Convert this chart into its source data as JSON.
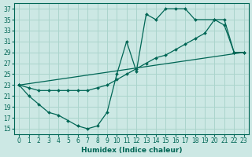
{
  "xlabel": "Humidex (Indice chaleur)",
  "bg_color": "#cce8e4",
  "grid_color": "#aad4cc",
  "line_color": "#006655",
  "xlim": [
    -0.5,
    23.5
  ],
  "ylim": [
    14,
    38
  ],
  "xticks": [
    0,
    1,
    2,
    3,
    4,
    5,
    6,
    7,
    8,
    9,
    10,
    11,
    12,
    13,
    14,
    15,
    16,
    17,
    18,
    19,
    20,
    21,
    22,
    23
  ],
  "yticks": [
    15,
    17,
    19,
    21,
    23,
    25,
    27,
    29,
    31,
    33,
    35,
    37
  ],
  "line1_x": [
    0,
    1,
    2,
    3,
    4,
    5,
    6,
    7,
    8,
    9,
    10,
    11,
    12,
    13,
    14,
    15,
    16,
    17,
    18,
    20,
    21,
    22,
    23
  ],
  "line1_y": [
    23,
    21,
    19.5,
    18,
    17.5,
    16.5,
    15.5,
    15,
    15.5,
    18,
    25,
    31,
    25.5,
    36,
    35,
    37,
    37,
    37,
    35,
    35,
    34,
    29,
    29
  ],
  "line2_x": [
    0,
    1,
    2,
    3,
    4,
    5,
    6,
    7,
    8,
    9,
    10,
    11,
    12,
    13,
    14,
    15,
    16,
    17,
    18,
    19,
    20,
    21,
    22,
    23
  ],
  "line2_y": [
    23,
    22.5,
    22,
    22,
    22,
    22,
    22,
    22,
    22.5,
    23,
    24,
    25,
    26,
    27,
    28,
    28.5,
    29.5,
    30.5,
    31.5,
    32.5,
    35,
    35,
    29,
    29
  ],
  "line3_x": [
    0,
    23
  ],
  "line3_y": [
    23,
    29
  ]
}
